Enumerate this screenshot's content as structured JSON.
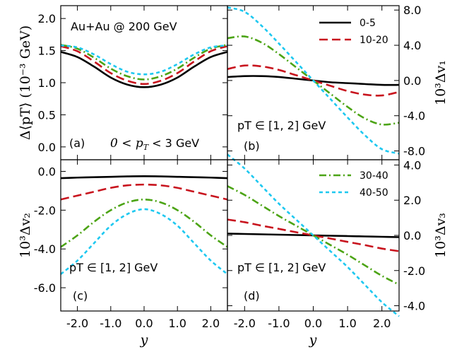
{
  "figure": {
    "x_label": "y",
    "x_ticks": [
      "-2.0",
      "-1.0",
      "0.0",
      "1.0",
      "2.0"
    ],
    "x_tick_values": [
      -2,
      -1,
      0,
      1,
      2
    ]
  },
  "panels": {
    "a": {
      "letter": "(a)",
      "system_label": "Au+Au @ 200 GeV",
      "range_label": "0 < p",
      "range_sub": "T",
      "range_tail": " < 3 GeV",
      "ylabel": "Δ⟨pT⟩ (10⁻³ GeV)",
      "yticks": [
        "0.0",
        "0.5",
        "1.0",
        "1.5",
        "2.0"
      ]
    },
    "b": {
      "letter": "(b)",
      "pt_label": "pT ∈ [1, 2] GeV",
      "ylabel": "10³Δv₁",
      "yticks": [
        "-8.0",
        "-4.0",
        "0.0",
        "4.0",
        "8.0"
      ]
    },
    "c": {
      "letter": "(c)",
      "pt_label": "pT ∈ [1, 2] GeV",
      "ylabel": "10³Δv₂",
      "yticks": [
        "-6.0",
        "-4.0",
        "-2.0",
        "0.0"
      ]
    },
    "d": {
      "letter": "(d)",
      "pt_label": "pT ∈ [1, 2] GeV",
      "ylabel": "10³Δv₃",
      "yticks": [
        "-4.0",
        "-2.0",
        "0.0",
        "2.0",
        "4.0"
      ]
    }
  },
  "legend": {
    "top": [
      "0-5",
      "10-20"
    ],
    "bottom": [
      "30-40",
      "40-50"
    ]
  },
  "colors": {
    "0-5": "#000000",
    "10-20": "#c8141e",
    "30-40": "#4ca414",
    "40-50": "#1ec8f0"
  },
  "chart_data": [
    {
      "type": "line",
      "panel": "a",
      "xlabel": "y",
      "ylabel": "Δ⟨pT⟩ (10⁻³ GeV)",
      "xlim": [
        -2.5,
        2.5
      ],
      "ylim": [
        -0.2,
        2.2
      ],
      "x": [
        -2.5,
        -2.0,
        -1.5,
        -1.0,
        -0.5,
        0.0,
        0.5,
        1.0,
        1.5,
        2.0,
        2.5
      ],
      "series": [
        {
          "name": "0-5",
          "values": [
            1.48,
            1.4,
            1.25,
            1.08,
            0.97,
            0.93,
            0.97,
            1.08,
            1.25,
            1.4,
            1.48
          ]
        },
        {
          "name": "10-20",
          "values": [
            1.57,
            1.49,
            1.33,
            1.15,
            1.03,
            0.98,
            1.03,
            1.15,
            1.33,
            1.49,
            1.57
          ]
        },
        {
          "name": "30-40",
          "values": [
            1.59,
            1.53,
            1.39,
            1.22,
            1.1,
            1.05,
            1.1,
            1.22,
            1.39,
            1.53,
            1.59
          ]
        },
        {
          "name": "40-50",
          "values": [
            1.58,
            1.55,
            1.44,
            1.29,
            1.17,
            1.13,
            1.17,
            1.29,
            1.44,
            1.55,
            1.58
          ]
        }
      ]
    },
    {
      "type": "line",
      "panel": "b",
      "xlabel": "y",
      "ylabel": "10³Δv₁",
      "xlim": [
        -2.5,
        2.5
      ],
      "ylim": [
        -9.0,
        8.5
      ],
      "x": [
        -2.5,
        -2.0,
        -1.5,
        -1.0,
        -0.5,
        0.0,
        0.5,
        1.0,
        1.5,
        2.0,
        2.5
      ],
      "series": [
        {
          "name": "0-5",
          "values": [
            0.4,
            0.5,
            0.5,
            0.4,
            0.2,
            0.0,
            -0.2,
            -0.3,
            -0.4,
            -0.5,
            -0.5
          ]
        },
        {
          "name": "10-20",
          "values": [
            1.3,
            1.7,
            1.6,
            1.2,
            0.6,
            0.0,
            -0.6,
            -1.2,
            -1.6,
            -1.7,
            -1.3
          ]
        },
        {
          "name": "30-40",
          "values": [
            4.8,
            5.0,
            4.3,
            3.0,
            1.5,
            0.0,
            -1.5,
            -3.0,
            -4.3,
            -5.0,
            -4.8
          ]
        },
        {
          "name": "40-50",
          "values": [
            8.3,
            7.8,
            6.2,
            4.2,
            2.1,
            0.0,
            -2.1,
            -4.2,
            -6.2,
            -7.8,
            -8.3
          ]
        }
      ]
    },
    {
      "type": "line",
      "panel": "c",
      "xlabel": "y",
      "ylabel": "10³Δv₂",
      "xlim": [
        -2.5,
        2.5
      ],
      "ylim": [
        -7.2,
        0.6
      ],
      "x": [
        -2.5,
        -2.0,
        -1.5,
        -1.0,
        -0.5,
        0.0,
        0.5,
        1.0,
        1.5,
        2.0,
        2.5
      ],
      "series": [
        {
          "name": "0-5",
          "values": [
            -0.35,
            -0.32,
            -0.3,
            -0.28,
            -0.26,
            -0.25,
            -0.26,
            -0.28,
            -0.3,
            -0.32,
            -0.35
          ]
        },
        {
          "name": "10-20",
          "values": [
            -1.45,
            -1.25,
            -1.05,
            -0.85,
            -0.72,
            -0.68,
            -0.72,
            -0.85,
            -1.05,
            -1.25,
            -1.45
          ]
        },
        {
          "name": "30-40",
          "values": [
            -3.9,
            -3.3,
            -2.6,
            -2.0,
            -1.6,
            -1.45,
            -1.6,
            -2.0,
            -2.6,
            -3.3,
            -3.9
          ]
        },
        {
          "name": "40-50",
          "values": [
            -5.3,
            -4.6,
            -3.7,
            -2.8,
            -2.2,
            -1.95,
            -2.2,
            -2.8,
            -3.7,
            -4.6,
            -5.3
          ]
        }
      ]
    },
    {
      "type": "line",
      "panel": "d",
      "xlabel": "y",
      "ylabel": "10³Δv₃",
      "xlim": [
        -2.5,
        2.5
      ],
      "ylim": [
        -4.3,
        4.3
      ],
      "x": [
        -2.5,
        -2.0,
        -1.5,
        -1.0,
        -0.5,
        0.0,
        0.5,
        1.0,
        1.5,
        2.0,
        2.5
      ],
      "series": [
        {
          "name": "0-5",
          "values": [
            0.1,
            0.08,
            0.06,
            0.04,
            0.02,
            0.0,
            -0.02,
            -0.04,
            -0.06,
            -0.08,
            -0.1
          ]
        },
        {
          "name": "10-20",
          "values": [
            0.9,
            0.75,
            0.55,
            0.37,
            0.18,
            0.0,
            -0.18,
            -0.37,
            -0.55,
            -0.75,
            -0.9
          ]
        },
        {
          "name": "30-40",
          "values": [
            2.8,
            2.3,
            1.7,
            1.1,
            0.55,
            0.0,
            -0.55,
            -1.1,
            -1.7,
            -2.3,
            -2.8
          ]
        },
        {
          "name": "40-50",
          "values": [
            4.6,
            3.8,
            2.8,
            1.8,
            0.9,
            0.0,
            -0.9,
            -1.8,
            -2.8,
            -3.8,
            -4.6
          ]
        }
      ]
    }
  ]
}
